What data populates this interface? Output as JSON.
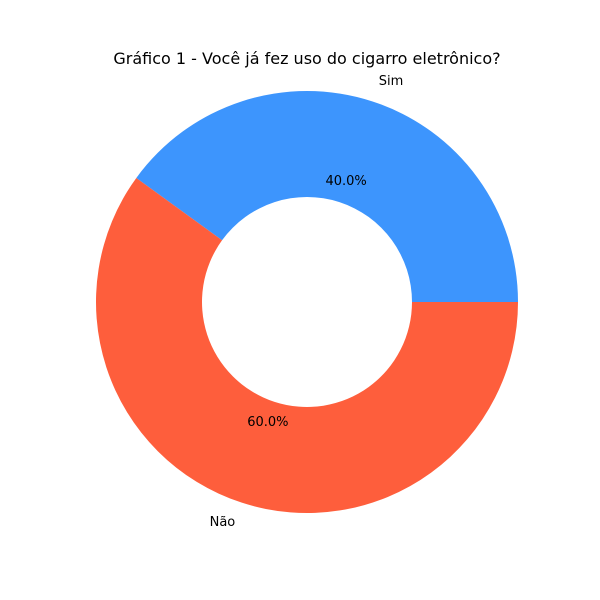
{
  "chart_data": {
    "type": "pie",
    "title": "Gráfico 1 - Você já fez uso do cigarro eletrônico?",
    "categories": [
      "Sim",
      "Não"
    ],
    "values": [
      40.0,
      60.0
    ],
    "percent_labels": [
      "40.0%",
      "60.0%"
    ],
    "colors": [
      "#3d95fd",
      "#fe5e3c"
    ],
    "donut": true,
    "start_angle_deg": 0,
    "direction": "counterclockwise",
    "legend": "none"
  }
}
